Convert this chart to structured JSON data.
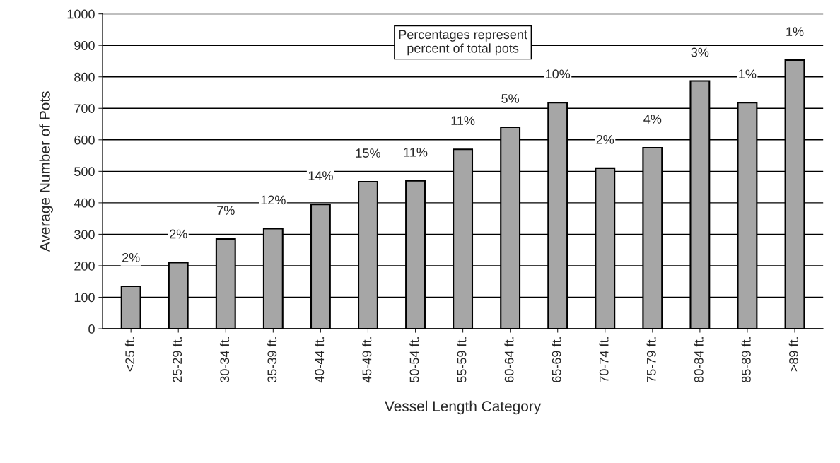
{
  "chart_data": {
    "type": "bar",
    "xlabel": "Vessel Length Category",
    "ylabel": "Average Number of Pots",
    "categories": [
      "<25 ft.",
      "25-29 ft.",
      "30-34 ft.",
      "35-39 ft.",
      "40-44 ft.",
      "45-49 ft.",
      "50-54 ft.",
      "55-59 ft.",
      "60-64 ft.",
      "65-69 ft.",
      "70-74 ft.",
      "75-79 ft.",
      "80-84 ft.",
      "85-89 ft.",
      ">89 ft."
    ],
    "values": [
      135,
      210,
      285,
      318,
      395,
      467,
      470,
      570,
      640,
      718,
      510,
      575,
      787,
      718,
      853
    ],
    "color": "#a6a6a6",
    "ylim": [
      0,
      1000
    ],
    "yticks": [
      0,
      100,
      200,
      300,
      400,
      500,
      600,
      700,
      800,
      900,
      1000
    ],
    "grid": "y",
    "annotations": [
      "Percentages represent\npercent of total pots",
      {
        "text": "2%",
        "x": "<25 ft.",
        "y": 135
      },
      {
        "text": "2%",
        "x": "25-29 ft.",
        "y": 210
      },
      {
        "text": "7%",
        "x": "30-34 ft.",
        "y": 285
      },
      {
        "text": "12%",
        "x": "35-39 ft.",
        "y": 318
      },
      {
        "text": "14%",
        "x": "40-44 ft.",
        "y": 395
      },
      {
        "text": "15%",
        "x": "45-49 ft.",
        "y": 467
      },
      {
        "text": "11%",
        "x": "50-54 ft.",
        "y": 470
      },
      {
        "text": "11%",
        "x": "55-59 ft.",
        "y": 570
      },
      {
        "text": "5%",
        "x": "60-64 ft.",
        "y": 640
      },
      {
        "text": "10%",
        "x": "65-69 ft.",
        "y": 718
      },
      {
        "text": "2%",
        "x": "70-74 ft.",
        "y": 510
      },
      {
        "text": "4%",
        "x": "75-79 ft.",
        "y": 575
      },
      {
        "text": "3%",
        "x": "80-84 ft.",
        "y": 787
      },
      {
        "text": "1%",
        "x": "85-89 ft.",
        "y": 718
      },
      {
        "text": "1%",
        "x": ">89 ft.",
        "y": 853
      }
    ]
  }
}
